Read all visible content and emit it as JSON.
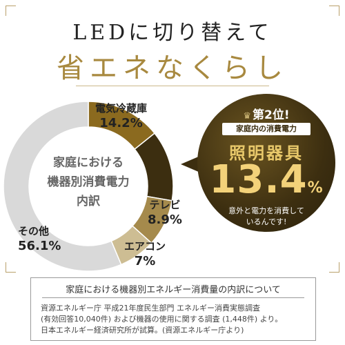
{
  "heading": {
    "line1": "LEDに切り替えて",
    "line2": "省エネなくらし"
  },
  "chart_data": {
    "type": "pie",
    "title": "",
    "center_label_lines": [
      "家庭における",
      "機器別消費電力",
      "内訳"
    ],
    "unit": "%",
    "slices": [
      {
        "name": "電気冷蔵庫",
        "value": 14.2,
        "display": "14.2%",
        "color": "#8b6a1f"
      },
      {
        "name": "照明器具",
        "value": 13.4,
        "display": "13.4%",
        "color": "#3c2e10"
      },
      {
        "name": "テレビ",
        "value": 8.9,
        "display": "8.9%",
        "color": "#a58a4c"
      },
      {
        "name": "エアコン",
        "value": 7.0,
        "display": "7%",
        "color": "#cdbd93"
      },
      {
        "name": "その他",
        "value": 56.1,
        "display": "56.1%",
        "color": "#d9d9d9"
      }
    ]
  },
  "badge": {
    "rank": "第2位!",
    "subtitle": "家庭内の消費電力",
    "item": "照明器具",
    "value": "13.4",
    "unit": "%",
    "note_lines": [
      "意外と電力を消費して",
      "いるんです!"
    ]
  },
  "source": {
    "title": "家庭における機器別エネルギー消費量の内訳について",
    "lines": [
      "資源エネルギー庁 平成21年度民生部門 エネルギー消費実態調査",
      "(有効回答10,040件) および機器の使用に関する調査 (1,448件) より。",
      "日本エネルギー経済研究所が試算。(資源エネルギー庁より)"
    ]
  }
}
